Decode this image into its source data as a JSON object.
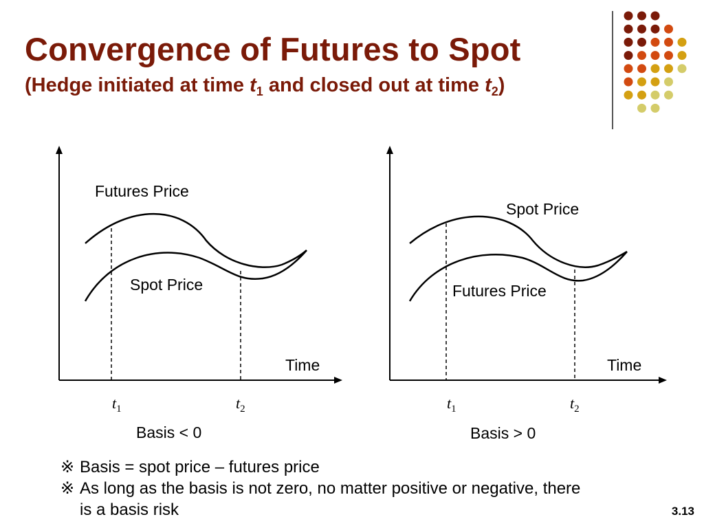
{
  "slide": {
    "title": "Convergence of Futures to Spot",
    "subtitle": {
      "prefix": "(Hedge initiated at time ",
      "t1_var": "t",
      "t1_sub": "1",
      "middle": " and closed out at time ",
      "t2_var": "t",
      "t2_sub": "2",
      "suffix": ")"
    },
    "slide_number": "3.13"
  },
  "decoration": {
    "dot_colors": [
      "#7a1a08",
      "#d24a10",
      "#d4a012",
      "#d4cc6a"
    ]
  },
  "diagrams": [
    {
      "upper_label": "Futures Price",
      "lower_label": "Spot Price",
      "time_label": "Time",
      "t1_var": "t",
      "t1_sub": "1",
      "t2_var": "t",
      "t2_sub": "2",
      "basis_label": "Basis < 0"
    },
    {
      "upper_label": "Spot Price",
      "lower_label": "Futures Price",
      "time_label": "Time",
      "t1_var": "t",
      "t1_sub": "1",
      "t2_var": "t",
      "t2_sub": "2",
      "basis_label": "Basis > 0"
    }
  ],
  "notes": {
    "mark": "※",
    "line1": "Basis = spot price – futures price",
    "line2a": "As long as the basis is not zero, no matter positive or negative, there",
    "line2b": "is a basis risk"
  }
}
